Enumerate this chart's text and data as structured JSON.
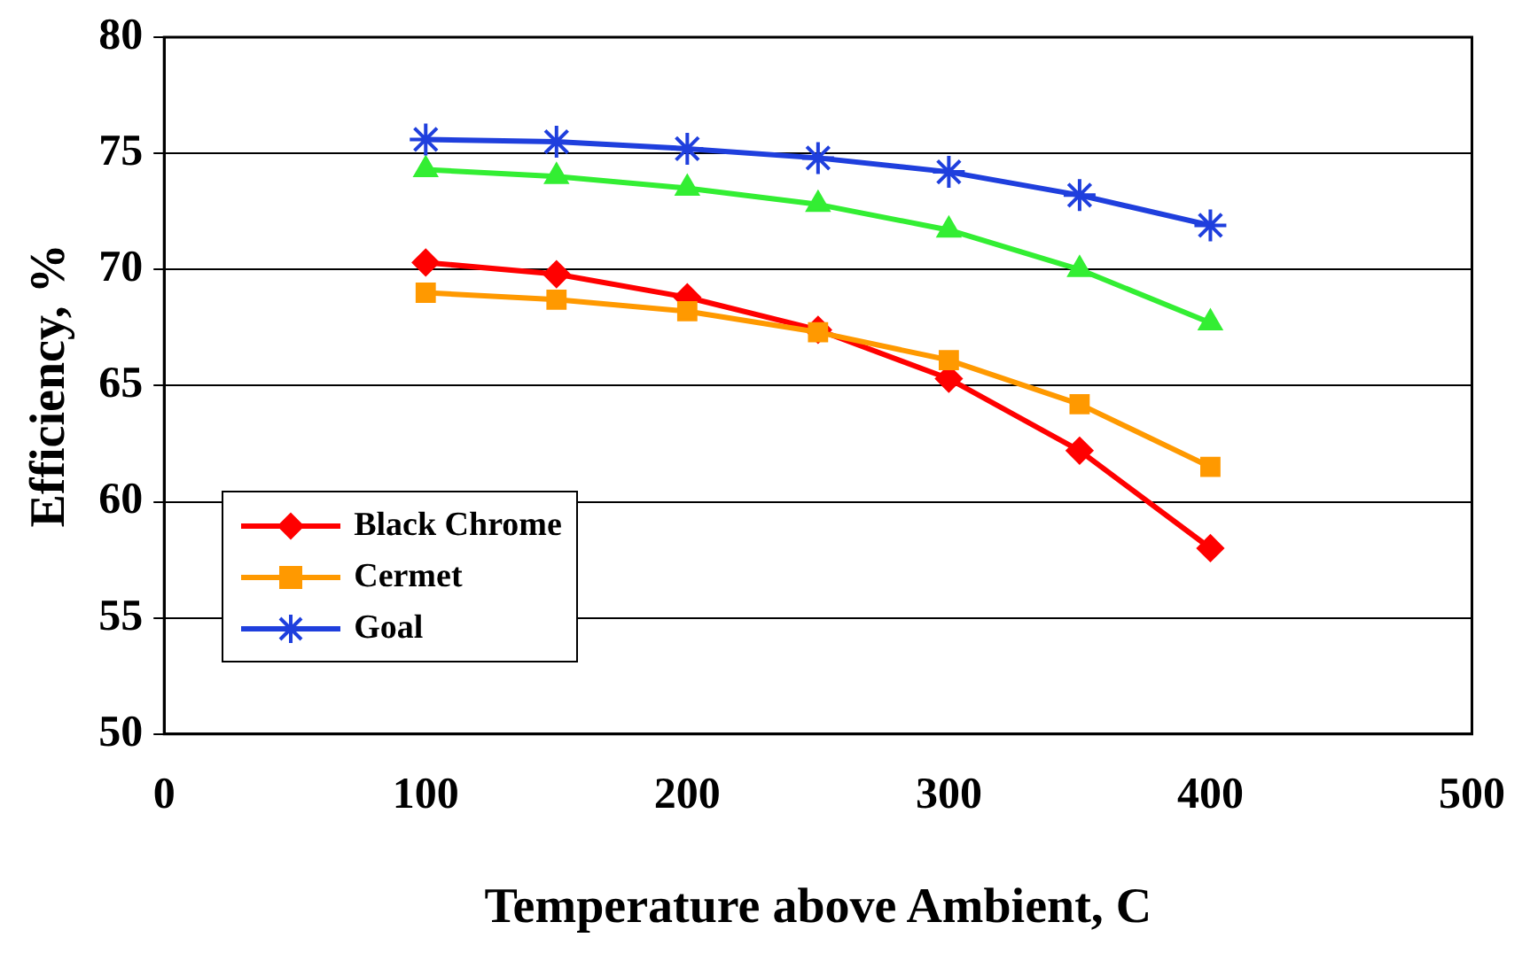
{
  "chart_data": {
    "type": "line",
    "xlabel": "Temperature above Ambient, C",
    "ylabel": "Efficiency, %",
    "x": [
      100,
      150,
      200,
      250,
      300,
      350,
      400
    ],
    "xlim": [
      0,
      500
    ],
    "xticks": [
      0,
      100,
      200,
      300,
      400,
      500
    ],
    "ylim": [
      50,
      80
    ],
    "yticks": [
      50,
      55,
      60,
      65,
      70,
      75,
      80
    ],
    "grid": "y",
    "legend": "bottom left",
    "series": [
      {
        "name": "Black Chrome",
        "color": "#ff0000",
        "marker": "diamond",
        "values": [
          70.3,
          69.8,
          68.8,
          67.4,
          65.3,
          62.2,
          58.0
        ]
      },
      {
        "name": "Cermet",
        "color": "#ff9900",
        "marker": "square",
        "values": [
          69.0,
          68.7,
          68.2,
          67.3,
          66.1,
          64.2,
          61.5
        ]
      },
      {
        "color": "#33ee33",
        "marker": "triangle",
        "values": [
          74.3,
          74.0,
          73.5,
          72.8,
          71.7,
          70.0,
          67.7
        ]
      },
      {
        "name": "Goal",
        "color": "#1f3fdd",
        "marker": "cross",
        "values": [
          75.6,
          75.5,
          75.2,
          74.8,
          74.2,
          73.2,
          71.9
        ]
      }
    ]
  }
}
